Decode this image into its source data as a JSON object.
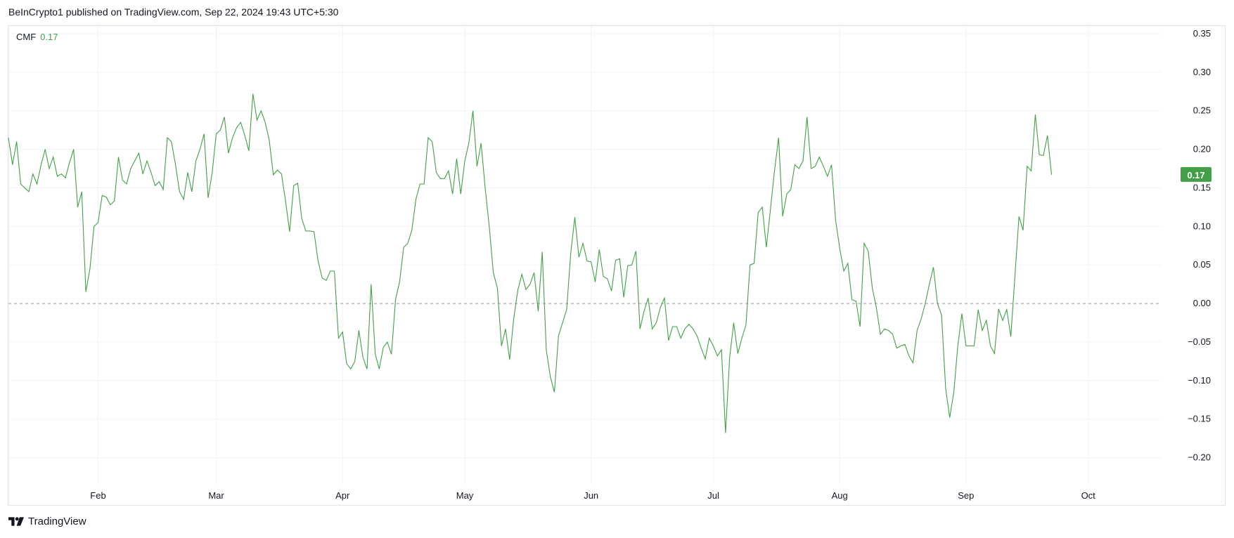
{
  "header": {
    "published": "BeInCrypto1 published on TradingView.com, Sep 22, 2024 19:43 UTC+5:30"
  },
  "legend": {
    "name": "CMF",
    "value": "0.17"
  },
  "footer": {
    "brand": "TradingView"
  },
  "colors": {
    "line": "#43a047",
    "badge": "#43a047",
    "grid": "#f0f3fa",
    "zero": "#9598a1"
  },
  "chart_data": {
    "type": "line",
    "title": "",
    "xlabel": "",
    "ylabel": "",
    "x_start": "2024-01-10",
    "x_end": "2024-10-19",
    "ylim": [
      -0.235,
      0.36
    ],
    "y_ticks": [
      0.35,
      0.3,
      0.25,
      0.2,
      0.15,
      0.1,
      0.05,
      0.0,
      -0.05,
      -0.1,
      -0.15,
      -0.2
    ],
    "y_tick_labels": [
      "0.35",
      "0.30",
      "0.25",
      "0.20",
      "0.15",
      "0.10",
      "0.05",
      "0.00",
      "−0.05",
      "−0.10",
      "−0.15",
      "−0.20"
    ],
    "x_ticks": [
      {
        "label": "Feb",
        "date": "2024-02-01"
      },
      {
        "label": "Mar",
        "date": "2024-03-01"
      },
      {
        "label": "Apr",
        "date": "2024-04-01"
      },
      {
        "label": "May",
        "date": "2024-05-01"
      },
      {
        "label": "Jun",
        "date": "2024-06-01"
      },
      {
        "label": "Jul",
        "date": "2024-07-01"
      },
      {
        "label": "Aug",
        "date": "2024-08-01"
      },
      {
        "label": "Sep",
        "date": "2024-09-01"
      },
      {
        "label": "Oct",
        "date": "2024-10-01"
      }
    ],
    "grid": true,
    "zero_line": true,
    "last_value_label": "0.17",
    "series": [
      {
        "name": "CMF",
        "dates": [
          "2024-01-10",
          "2024-01-11",
          "2024-01-12",
          "2024-01-13",
          "2024-01-14",
          "2024-01-15",
          "2024-01-16",
          "2024-01-17",
          "2024-01-18",
          "2024-01-19",
          "2024-01-20",
          "2024-01-21",
          "2024-01-22",
          "2024-01-23",
          "2024-01-24",
          "2024-01-25",
          "2024-01-26",
          "2024-01-27",
          "2024-01-28",
          "2024-01-29",
          "2024-01-30",
          "2024-01-31",
          "2024-02-01",
          "2024-02-02",
          "2024-02-03",
          "2024-02-04",
          "2024-02-05",
          "2024-02-06",
          "2024-02-07",
          "2024-02-08",
          "2024-02-09",
          "2024-02-10",
          "2024-02-11",
          "2024-02-12",
          "2024-02-13",
          "2024-02-14",
          "2024-02-15",
          "2024-02-16",
          "2024-02-17",
          "2024-02-18",
          "2024-02-19",
          "2024-02-20",
          "2024-02-21",
          "2024-02-22",
          "2024-02-23",
          "2024-02-24",
          "2024-02-25",
          "2024-02-26",
          "2024-02-27",
          "2024-02-28",
          "2024-02-29",
          "2024-03-01",
          "2024-03-02",
          "2024-03-03",
          "2024-03-04",
          "2024-03-05",
          "2024-03-06",
          "2024-03-07",
          "2024-03-08",
          "2024-03-09",
          "2024-03-10",
          "2024-03-11",
          "2024-03-12",
          "2024-03-13",
          "2024-03-14",
          "2024-03-15",
          "2024-03-16",
          "2024-03-17",
          "2024-03-18",
          "2024-03-19",
          "2024-03-20",
          "2024-03-21",
          "2024-03-22",
          "2024-03-23",
          "2024-03-24",
          "2024-03-25",
          "2024-03-26",
          "2024-03-27",
          "2024-03-28",
          "2024-03-29",
          "2024-03-30",
          "2024-03-31",
          "2024-04-01",
          "2024-04-02",
          "2024-04-03",
          "2024-04-04",
          "2024-04-05",
          "2024-04-06",
          "2024-04-07",
          "2024-04-08",
          "2024-04-09",
          "2024-04-10",
          "2024-04-11",
          "2024-04-12",
          "2024-04-13",
          "2024-04-14",
          "2024-04-15",
          "2024-04-16",
          "2024-04-17",
          "2024-04-18",
          "2024-04-19",
          "2024-04-20",
          "2024-04-21",
          "2024-04-22",
          "2024-04-23",
          "2024-04-24",
          "2024-04-25",
          "2024-04-26",
          "2024-04-27",
          "2024-04-28",
          "2024-04-29",
          "2024-04-30",
          "2024-05-01",
          "2024-05-02",
          "2024-05-03",
          "2024-05-04",
          "2024-05-05",
          "2024-05-06",
          "2024-05-07",
          "2024-05-08",
          "2024-05-09",
          "2024-05-10",
          "2024-05-11",
          "2024-05-12",
          "2024-05-13",
          "2024-05-14",
          "2024-05-15",
          "2024-05-16",
          "2024-05-17",
          "2024-05-18",
          "2024-05-19",
          "2024-05-20",
          "2024-05-21",
          "2024-05-22",
          "2024-05-23",
          "2024-05-24",
          "2024-05-25",
          "2024-05-26",
          "2024-05-27",
          "2024-05-28",
          "2024-05-29",
          "2024-05-30",
          "2024-05-31",
          "2024-06-01",
          "2024-06-02",
          "2024-06-03",
          "2024-06-04",
          "2024-06-05",
          "2024-06-06",
          "2024-06-07",
          "2024-06-08",
          "2024-06-09",
          "2024-06-10",
          "2024-06-11",
          "2024-06-12",
          "2024-06-13",
          "2024-06-14",
          "2024-06-15",
          "2024-06-16",
          "2024-06-17",
          "2024-06-18",
          "2024-06-19",
          "2024-06-20",
          "2024-06-21",
          "2024-06-22",
          "2024-06-23",
          "2024-06-24",
          "2024-06-25",
          "2024-06-26",
          "2024-06-27",
          "2024-06-28",
          "2024-06-29",
          "2024-06-30",
          "2024-07-01",
          "2024-07-02",
          "2024-07-03",
          "2024-07-04",
          "2024-07-05",
          "2024-07-06",
          "2024-07-07",
          "2024-07-08",
          "2024-07-09",
          "2024-07-10",
          "2024-07-11",
          "2024-07-12",
          "2024-07-13",
          "2024-07-14",
          "2024-07-15",
          "2024-07-16",
          "2024-07-17",
          "2024-07-18",
          "2024-07-19",
          "2024-07-20",
          "2024-07-21",
          "2024-07-22",
          "2024-07-23",
          "2024-07-24",
          "2024-07-25",
          "2024-07-26",
          "2024-07-27",
          "2024-07-28",
          "2024-07-29",
          "2024-07-30",
          "2024-07-31",
          "2024-08-01",
          "2024-08-02",
          "2024-08-03",
          "2024-08-04",
          "2024-08-05",
          "2024-08-06",
          "2024-08-07",
          "2024-08-08",
          "2024-08-09",
          "2024-08-10",
          "2024-08-11",
          "2024-08-12",
          "2024-08-13",
          "2024-08-14",
          "2024-08-15",
          "2024-08-16",
          "2024-08-17",
          "2024-08-18",
          "2024-08-19",
          "2024-08-20",
          "2024-08-21",
          "2024-08-22",
          "2024-08-23",
          "2024-08-24",
          "2024-08-25",
          "2024-08-26",
          "2024-08-27",
          "2024-08-28",
          "2024-08-29",
          "2024-08-30",
          "2024-08-31",
          "2024-09-01",
          "2024-09-02",
          "2024-09-03",
          "2024-09-04",
          "2024-09-05",
          "2024-09-06",
          "2024-09-07",
          "2024-09-08",
          "2024-09-09",
          "2024-09-10",
          "2024-09-11",
          "2024-09-12",
          "2024-09-13",
          "2024-09-14",
          "2024-09-15",
          "2024-09-16",
          "2024-09-17",
          "2024-09-18",
          "2024-09-19",
          "2024-09-20",
          "2024-09-21",
          "2024-09-22"
        ],
        "values": [
          0.215,
          0.18,
          0.21,
          0.155,
          0.15,
          0.145,
          0.168,
          0.155,
          0.18,
          0.2,
          0.175,
          0.19,
          0.165,
          0.168,
          0.163,
          0.183,
          0.2,
          0.125,
          0.145,
          0.015,
          0.045,
          0.1,
          0.105,
          0.14,
          0.138,
          0.128,
          0.133,
          0.19,
          0.16,
          0.155,
          0.175,
          0.185,
          0.195,
          0.168,
          0.185,
          0.17,
          0.153,
          0.158,
          0.148,
          0.215,
          0.21,
          0.18,
          0.145,
          0.135,
          0.17,
          0.145,
          0.185,
          0.2,
          0.22,
          0.137,
          0.17,
          0.22,
          0.225,
          0.242,
          0.195,
          0.215,
          0.228,
          0.235,
          0.218,
          0.198,
          0.272,
          0.238,
          0.25,
          0.235,
          0.212,
          0.167,
          0.173,
          0.168,
          0.133,
          0.093,
          0.153,
          0.156,
          0.11,
          0.094,
          0.094,
          0.093,
          0.055,
          0.033,
          0.03,
          0.042,
          0.042,
          -0.045,
          -0.037,
          -0.078,
          -0.085,
          -0.075,
          -0.035,
          -0.07,
          -0.085,
          0.025,
          -0.065,
          -0.085,
          -0.057,
          -0.05,
          -0.066,
          0.005,
          0.028,
          0.073,
          0.078,
          0.095,
          0.135,
          0.155,
          0.155,
          0.215,
          0.21,
          0.17,
          0.162,
          0.162,
          0.172,
          0.142,
          0.188,
          0.142,
          0.185,
          0.208,
          0.25,
          0.178,
          0.208,
          0.15,
          0.1,
          0.04,
          0.02,
          -0.055,
          -0.033,
          -0.073,
          -0.02,
          0.017,
          0.038,
          0.018,
          0.025,
          0.04,
          -0.01,
          0.067,
          -0.06,
          -0.095,
          -0.115,
          -0.042,
          -0.025,
          -0.008,
          0.065,
          0.112,
          0.06,
          0.078,
          0.055,
          0.054,
          0.028,
          0.07,
          0.035,
          0.032,
          0.016,
          0.056,
          0.058,
          0.008,
          0.049,
          0.05,
          0.068,
          -0.033,
          -0.01,
          0.007,
          -0.033,
          -0.025,
          -0.005,
          0.007,
          -0.048,
          -0.03,
          -0.03,
          -0.045,
          -0.033,
          -0.027,
          -0.033,
          -0.042,
          -0.058,
          -0.072,
          -0.045,
          -0.055,
          -0.068,
          -0.06,
          -0.168,
          -0.07,
          -0.025,
          -0.065,
          -0.045,
          -0.028,
          0.05,
          0.052,
          0.118,
          0.125,
          0.073,
          0.122,
          0.172,
          0.215,
          0.113,
          0.142,
          0.148,
          0.18,
          0.175,
          0.185,
          0.242,
          0.175,
          0.178,
          0.19,
          0.178,
          0.165,
          0.18,
          0.108,
          0.072,
          0.042,
          0.052,
          0.005,
          0.003,
          -0.03,
          0.078,
          0.068,
          0.02,
          -0.005,
          -0.04,
          -0.033,
          -0.035,
          -0.04,
          -0.058,
          -0.055,
          -0.053,
          -0.068,
          -0.077,
          -0.035,
          -0.02,
          0.0,
          0.025,
          0.047,
          0.0,
          -0.015,
          -0.11,
          -0.148,
          -0.115,
          -0.055,
          -0.013,
          -0.055,
          -0.055,
          -0.055,
          -0.008,
          -0.035,
          -0.022,
          -0.055,
          -0.065,
          -0.007,
          -0.022,
          -0.008,
          -0.043,
          0.035,
          0.113,
          0.095,
          0.178,
          0.172,
          0.245,
          0.193,
          0.192,
          0.218,
          0.167
        ]
      }
    ]
  }
}
